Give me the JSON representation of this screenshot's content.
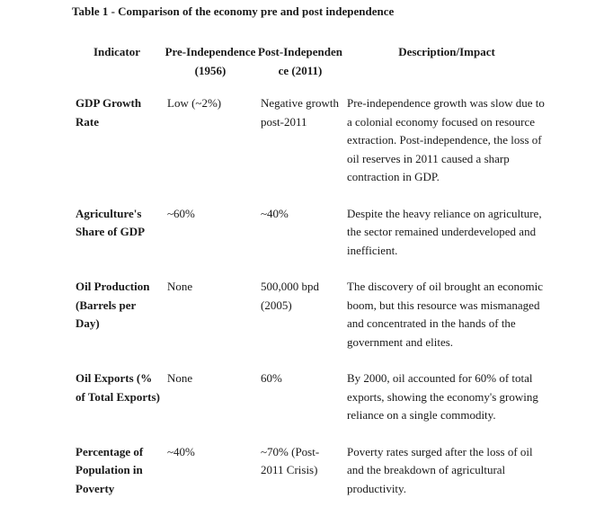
{
  "title": "Table 1 - Comparison of the economy pre and post independence",
  "headers": {
    "indicator": "Indicator",
    "pre": "Pre-Independence (1956)",
    "post": "Post-Independence (2011)",
    "description": "Description/Impact"
  },
  "rows": [
    {
      "indicator": "GDP Growth Rate",
      "pre": "Low (~2%)",
      "post": "Negative growth post-2011",
      "description": "Pre-independence growth was slow due to a colonial economy focused on resource extraction. Post-independence, the loss of oil reserves in 2011 caused a sharp contraction in GDP."
    },
    {
      "indicator": "Agriculture's Share of GDP",
      "pre": "~60%",
      "post": "~40%",
      "description": "Despite the heavy reliance on agriculture, the sector remained underdeveloped and inefficient."
    },
    {
      "indicator": "Oil Production (Barrels per Day)",
      "pre": "None",
      "post": "500,000 bpd (2005)",
      "description": "The discovery of oil brought an economic boom, but this resource was mismanaged and concentrated in the hands of the government and elites."
    },
    {
      "indicator": "Oil Exports (% of Total Exports)",
      "pre": "None",
      "post": "60%",
      "description": "By 2000, oil accounted for 60% of total exports, showing the economy's growing reliance on a single commodity."
    },
    {
      "indicator": "Percentage of Population in Poverty",
      "pre": "~40%",
      "post": "~70% (Post-2011 Crisis)",
      "description": "Poverty rates surged after the loss of oil and the breakdown of agricultural productivity."
    }
  ]
}
